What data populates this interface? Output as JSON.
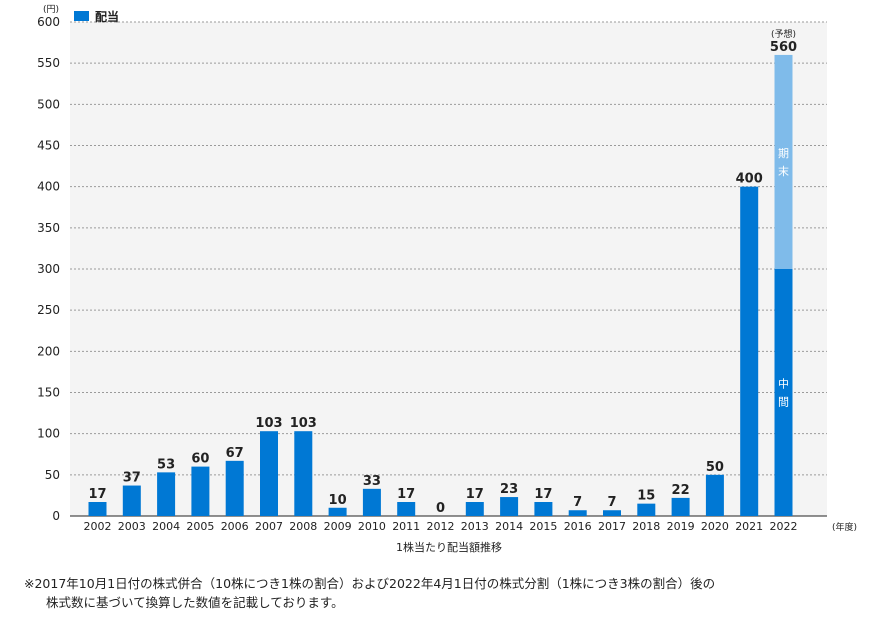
{
  "chart_data": {
    "type": "bar",
    "title": "1株当たり配当額推移",
    "y_unit_label": "(円)",
    "x_unit_label": "(年度)",
    "legend": [
      {
        "name": "配当",
        "color": "#0078d4"
      }
    ],
    "ylim": [
      0,
      600
    ],
    "yticks": [
      0,
      50,
      100,
      150,
      200,
      250,
      300,
      350,
      400,
      450,
      500,
      550,
      600
    ],
    "grid": true,
    "categories": [
      "2002",
      "2003",
      "2004",
      "2005",
      "2006",
      "2007",
      "2008",
      "2009",
      "2010",
      "2011",
      "2012",
      "2013",
      "2014",
      "2015",
      "2016",
      "2017",
      "2018",
      "2019",
      "2020",
      "2021",
      "2022"
    ],
    "values": [
      17,
      37,
      53,
      60,
      67,
      103,
      103,
      10,
      33,
      17,
      0,
      17,
      23,
      17,
      7,
      7,
      15,
      22,
      50,
      400,
      560
    ],
    "stacked_last": {
      "category": "2022",
      "forecast_label": "(予想)",
      "segments": [
        {
          "name": "中間",
          "value": 300,
          "color": "#0078d4"
        },
        {
          "name": "期末",
          "value": 260,
          "color": "#7fbbea"
        }
      ]
    }
  },
  "note": {
    "line1": "※2017年10月1日付の株式併合（10株につき1株の割合）および2022年4月1日付の株式分割（1株につき3株の割合）後の",
    "line2": "株式数に基づいて換算した数値を記載しております。"
  }
}
